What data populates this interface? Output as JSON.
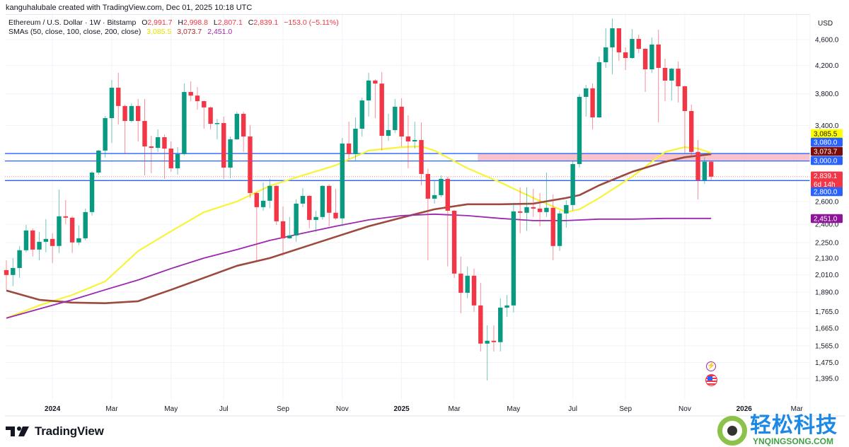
{
  "header": {
    "credit": "kanguhalubale created with TradingView.com, Dec 01, 2025 10:18 UTC",
    "symbol": "Ethereum / U.S. Dollar · 1W · Bitstamp",
    "o_label": "O",
    "o": "2,991.7",
    "h_label": "H",
    "h": "2,998.8",
    "l_label": "L",
    "l": "2,807.1",
    "c_label": "C",
    "c": "2,839.1",
    "change": "−153.0 (−5.11%)",
    "sma_label": "SMAs (50, close, 100, close, 200, close)",
    "sma_values": [
      "3,085.5",
      "3,073.7",
      "2,451.0"
    ]
  },
  "colors": {
    "up": "#089981",
    "down": "#f23645",
    "sma50": "#f7f43a",
    "sma100": "#9c4a3e",
    "sma200": "#9c27b0",
    "level_line": "#2962ff",
    "zone": "#f8b8c0",
    "grid": "#f0f3fa"
  },
  "chart_data": {
    "type": "candlestick",
    "interval": "1W",
    "price_scale": "log",
    "grid": true,
    "columns": [
      "date",
      "open",
      "high",
      "low",
      "close"
    ],
    "candles": [
      [
        "2023-11-13",
        2043,
        2115,
        1906,
        2008
      ],
      [
        "2023-11-20",
        2008,
        2131,
        1930,
        2058
      ],
      [
        "2023-11-27",
        2058,
        2224,
        1988,
        2191
      ],
      [
        "2023-12-04",
        2191,
        2396,
        2175,
        2349
      ],
      [
        "2023-12-11",
        2349,
        2367,
        2142,
        2196
      ],
      [
        "2023-12-18",
        2196,
        2337,
        2115,
        2257
      ],
      [
        "2023-12-25",
        2257,
        2445,
        2175,
        2280
      ],
      [
        "2024-01-01",
        2280,
        2326,
        2095,
        2224
      ],
      [
        "2024-01-08",
        2224,
        2714,
        2170,
        2469
      ],
      [
        "2024-01-15",
        2469,
        2614,
        2402,
        2457
      ],
      [
        "2024-01-22",
        2457,
        2470,
        2170,
        2252
      ],
      [
        "2024-01-29",
        2252,
        2390,
        2230,
        2285
      ],
      [
        "2024-02-05",
        2285,
        2537,
        2268,
        2506
      ],
      [
        "2024-02-12",
        2506,
        2895,
        2475,
        2880
      ],
      [
        "2024-02-19",
        2880,
        3120,
        2859,
        3112
      ],
      [
        "2024-02-26",
        3112,
        3515,
        3036,
        3489
      ],
      [
        "2024-03-04",
        3489,
        3990,
        3197,
        3883
      ],
      [
        "2024-03-11",
        3883,
        4093,
        3412,
        3641
      ],
      [
        "2024-03-18",
        3641,
        3659,
        3074,
        3454
      ],
      [
        "2024-03-25",
        3454,
        3677,
        3437,
        3641
      ],
      [
        "2024-04-01",
        3641,
        3732,
        3214,
        3454
      ],
      [
        "2024-04-08",
        3454,
        3732,
        2852,
        3158
      ],
      [
        "2024-04-15",
        3158,
        3278,
        2873,
        3142
      ],
      [
        "2024-04-22",
        3142,
        3353,
        3097,
        3262
      ],
      [
        "2024-04-29",
        3262,
        3295,
        2817,
        3134
      ],
      [
        "2024-05-06",
        3134,
        3214,
        2888,
        2924
      ],
      [
        "2024-05-13",
        2924,
        3150,
        2859,
        3074
      ],
      [
        "2024-05-20",
        3074,
        3943,
        3058,
        3825
      ],
      [
        "2024-05-27",
        3825,
        3972,
        3704,
        3777
      ],
      [
        "2024-06-03",
        3777,
        3893,
        3595,
        3704
      ],
      [
        "2024-06-10",
        3704,
        3712,
        3361,
        3623
      ],
      [
        "2024-06-17",
        3623,
        3632,
        3353,
        3420
      ],
      [
        "2024-06-24",
        3420,
        3481,
        3238,
        3429
      ],
      [
        "2024-07-01",
        3429,
        3507,
        2817,
        2931
      ],
      [
        "2024-07-08",
        2931,
        3270,
        2824,
        3238
      ],
      [
        "2024-07-15",
        3238,
        3568,
        3230,
        3542
      ],
      [
        "2024-07-22",
        3542,
        3568,
        3097,
        3270
      ],
      [
        "2024-07-29",
        3270,
        3404,
        2634,
        2680
      ],
      [
        "2024-08-05",
        2680,
        2690,
        2115,
        2550
      ],
      [
        "2024-08-12",
        2550,
        2782,
        2518,
        2608
      ],
      [
        "2024-08-19",
        2608,
        2817,
        2540,
        2748
      ],
      [
        "2024-08-26",
        2748,
        2755,
        2396,
        2426
      ],
      [
        "2024-09-02",
        2426,
        2556,
        2148,
        2285
      ],
      [
        "2024-09-09",
        2285,
        2463,
        2280,
        2308
      ],
      [
        "2024-09-16",
        2308,
        2621,
        2257,
        2582
      ],
      [
        "2024-09-23",
        2582,
        2727,
        2550,
        2653
      ],
      [
        "2024-09-30",
        2653,
        2660,
        2367,
        2438
      ],
      [
        "2024-10-07",
        2438,
        2518,
        2337,
        2463
      ],
      [
        "2024-10-14",
        2463,
        2755,
        2440,
        2748
      ],
      [
        "2024-10-21",
        2748,
        2762,
        2384,
        2500
      ],
      [
        "2024-10-28",
        2500,
        2720,
        2440,
        2451
      ],
      [
        "2024-11-04",
        2451,
        3254,
        2384,
        3190
      ],
      [
        "2024-11-11",
        3190,
        3446,
        3020,
        3074
      ],
      [
        "2024-11-18",
        3074,
        3498,
        3005,
        3361
      ],
      [
        "2024-11-25",
        3361,
        3750,
        3270,
        3713
      ],
      [
        "2024-12-02",
        3713,
        4093,
        3507,
        3983
      ],
      [
        "2024-12-09",
        3983,
        4000,
        3489,
        3940
      ],
      [
        "2024-12-16",
        3940,
        4104,
        3112,
        3278
      ],
      [
        "2024-12-23",
        3278,
        3542,
        3222,
        3345
      ],
      [
        "2024-12-30",
        3345,
        3732,
        3310,
        3632
      ],
      [
        "2025-01-06",
        3632,
        3741,
        3158,
        3270
      ],
      [
        "2025-01-13",
        3270,
        3524,
        2924,
        3214
      ],
      [
        "2025-01-20",
        3214,
        3446,
        3134,
        3230
      ],
      [
        "2025-01-27",
        3230,
        3437,
        2754,
        2866
      ],
      [
        "2025-02-03",
        2866,
        2920,
        2115,
        2627
      ],
      [
        "2025-02-10",
        2627,
        2796,
        2582,
        2660
      ],
      [
        "2025-02-17",
        2660,
        2852,
        2640,
        2817
      ],
      [
        "2025-02-24",
        2817,
        2838,
        2069,
        2518
      ],
      [
        "2025-03-03",
        2518,
        2525,
        1988,
        2018
      ],
      [
        "2025-03-10",
        2018,
        2142,
        1755,
        1886
      ],
      [
        "2025-03-17",
        1886,
        2069,
        1850,
        2003
      ],
      [
        "2025-03-24",
        2003,
        2054,
        1764,
        1804
      ],
      [
        "2025-03-31",
        1804,
        1954,
        1534,
        1577
      ],
      [
        "2025-04-07",
        1577,
        1682,
        1385,
        1593
      ],
      [
        "2025-04-14",
        1593,
        1682,
        1534,
        1585
      ],
      [
        "2025-04-21",
        1585,
        1850,
        1534,
        1790
      ],
      [
        "2025-04-28",
        1790,
        1872,
        1733,
        1804
      ],
      [
        "2025-05-05",
        1804,
        2589,
        1760,
        2512
      ],
      [
        "2025-05-12",
        2512,
        2734,
        2326,
        2500
      ],
      [
        "2025-05-19",
        2500,
        2734,
        2345,
        2550
      ],
      [
        "2025-05-26",
        2550,
        2720,
        2463,
        2537
      ],
      [
        "2025-06-02",
        2537,
        2680,
        2384,
        2506
      ],
      [
        "2025-06-09",
        2506,
        2880,
        2463,
        2544
      ],
      [
        "2025-06-16",
        2544,
        2667,
        2115,
        2224
      ],
      [
        "2025-06-23",
        2224,
        2519,
        2185,
        2494
      ],
      [
        "2025-06-30",
        2494,
        2614,
        2372,
        2569
      ],
      [
        "2025-07-07",
        2569,
        3005,
        2519,
        2968
      ],
      [
        "2025-07-14",
        2968,
        3797,
        2930,
        3760
      ],
      [
        "2025-07-21",
        3760,
        3923,
        3507,
        3874
      ],
      [
        "2025-07-28",
        3874,
        3943,
        3353,
        3498
      ],
      [
        "2025-08-04",
        3498,
        4334,
        3490,
        4248
      ],
      [
        "2025-08-11",
        4248,
        4790,
        4164,
        4476
      ],
      [
        "2025-08-18",
        4476,
        4955,
        4072,
        4787
      ],
      [
        "2025-08-25",
        4787,
        4790,
        4269,
        4398
      ],
      [
        "2025-09-01",
        4398,
        4476,
        4133,
        4311
      ],
      [
        "2025-09-08",
        4311,
        4775,
        4300,
        4611
      ],
      [
        "2025-09-15",
        4611,
        4680,
        4387,
        4453
      ],
      [
        "2025-09-22",
        4453,
        4465,
        3825,
        4143
      ],
      [
        "2025-09-29",
        4143,
        4634,
        4093,
        4521
      ],
      [
        "2025-10-06",
        4521,
        4762,
        3437,
        4164
      ],
      [
        "2025-10-13",
        4164,
        4301,
        3704,
        3981
      ],
      [
        "2025-10-20",
        3981,
        4164,
        3712,
        4152
      ],
      [
        "2025-10-27",
        4152,
        4258,
        3686,
        3903
      ],
      [
        "2025-11-03",
        3903,
        3910,
        3081,
        3577
      ],
      [
        "2025-11-10",
        3577,
        3659,
        3058,
        3097
      ],
      [
        "2025-11-17",
        3097,
        3230,
        2621,
        2803
      ],
      [
        "2025-11-24",
        2803,
        3040,
        2768,
        2992
      ],
      [
        "2025-12-01",
        2991.7,
        2998.8,
        2807.1,
        2839.1
      ]
    ],
    "sma": [
      {
        "name": "SMA 50",
        "color_key": "sma50",
        "points": [
          [
            "2023-11-13",
            1725
          ],
          [
            "2023-12-18",
            1804
          ],
          [
            "2024-01-22",
            1872
          ],
          [
            "2024-02-26",
            1963
          ],
          [
            "2024-04-01",
            2185
          ],
          [
            "2024-05-06",
            2343
          ],
          [
            "2024-06-10",
            2506
          ],
          [
            "2024-07-15",
            2601
          ],
          [
            "2024-08-19",
            2748
          ],
          [
            "2024-09-23",
            2852
          ],
          [
            "2024-10-28",
            2954
          ],
          [
            "2024-12-02",
            3112
          ],
          [
            "2025-01-06",
            3150
          ],
          [
            "2025-01-27",
            3158
          ],
          [
            "2025-02-10",
            3112
          ],
          [
            "2025-03-17",
            2924
          ],
          [
            "2025-04-21",
            2782
          ],
          [
            "2025-05-26",
            2634
          ],
          [
            "2025-06-30",
            2506
          ],
          [
            "2025-07-14",
            2531
          ],
          [
            "2025-08-04",
            2634
          ],
          [
            "2025-09-08",
            2838
          ],
          [
            "2025-10-13",
            3097
          ],
          [
            "2025-11-03",
            3150
          ],
          [
            "2025-11-17",
            3134
          ],
          [
            "2025-12-01",
            3085.5
          ]
        ]
      },
      {
        "name": "SMA 100",
        "color_key": "sma100",
        "points": [
          [
            "2023-11-13",
            1901
          ],
          [
            "2023-12-18",
            1840
          ],
          [
            "2024-01-22",
            1822
          ],
          [
            "2024-02-26",
            1818
          ],
          [
            "2024-04-01",
            1831
          ],
          [
            "2024-05-06",
            1906
          ],
          [
            "2024-06-10",
            1988
          ],
          [
            "2024-07-15",
            2074
          ],
          [
            "2024-08-19",
            2131
          ],
          [
            "2024-09-23",
            2213
          ],
          [
            "2024-10-28",
            2297
          ],
          [
            "2024-12-02",
            2384
          ],
          [
            "2025-01-06",
            2457
          ],
          [
            "2025-02-10",
            2531
          ],
          [
            "2025-03-17",
            2576
          ],
          [
            "2025-04-21",
            2576
          ],
          [
            "2025-05-26",
            2582
          ],
          [
            "2025-06-30",
            2634
          ],
          [
            "2025-07-14",
            2660
          ],
          [
            "2025-08-04",
            2754
          ],
          [
            "2025-09-08",
            2888
          ],
          [
            "2025-10-13",
            2991
          ],
          [
            "2025-11-03",
            3040
          ],
          [
            "2025-12-01",
            3073.7
          ]
        ]
      },
      {
        "name": "SMA 200",
        "color_key": "sma200",
        "points": [
          [
            "2023-11-13",
            1725
          ],
          [
            "2023-12-18",
            1782
          ],
          [
            "2024-01-22",
            1840
          ],
          [
            "2024-02-26",
            1906
          ],
          [
            "2024-04-01",
            1973
          ],
          [
            "2024-05-06",
            2054
          ],
          [
            "2024-06-10",
            2131
          ],
          [
            "2024-07-15",
            2196
          ],
          [
            "2024-08-19",
            2268
          ],
          [
            "2024-09-23",
            2326
          ],
          [
            "2024-10-28",
            2384
          ],
          [
            "2024-12-02",
            2438
          ],
          [
            "2025-01-06",
            2475
          ],
          [
            "2025-02-10",
            2488
          ],
          [
            "2025-03-17",
            2475
          ],
          [
            "2025-04-21",
            2451
          ],
          [
            "2025-05-26",
            2432
          ],
          [
            "2025-06-30",
            2432
          ],
          [
            "2025-08-04",
            2445
          ],
          [
            "2025-09-08",
            2445
          ],
          [
            "2025-10-13",
            2451
          ],
          [
            "2025-12-01",
            2451.0
          ]
        ]
      }
    ],
    "horizontal_lines": [
      3080.0,
      3000.0,
      2800.0
    ],
    "zone": {
      "from_date": "2025-03-31",
      "low": 3000.0,
      "high": 3080.0
    },
    "current_price": 2839.1
  },
  "price_axis": {
    "currency": "USD",
    "ticks": [
      {
        "value": 4600,
        "label": "4,600.0"
      },
      {
        "value": 4200,
        "label": "4,200.0"
      },
      {
        "value": 3800,
        "label": "3,800.0"
      },
      {
        "value": 3400,
        "label": "3,400.0"
      },
      {
        "value": 2600,
        "label": "2,600.0"
      },
      {
        "value": 2400,
        "label": "2,400.0"
      },
      {
        "value": 2250,
        "label": "2,250.0"
      },
      {
        "value": 2130,
        "label": "2,130.0"
      },
      {
        "value": 2010,
        "label": "2,010.0"
      },
      {
        "value": 1890,
        "label": "1,890.0"
      },
      {
        "value": 1765,
        "label": "1,765.0"
      },
      {
        "value": 1665,
        "label": "1,665.0"
      },
      {
        "value": 1565,
        "label": "1,565.0"
      },
      {
        "value": 1475,
        "label": "1,475.0"
      },
      {
        "value": 1395,
        "label": "1,395.0"
      }
    ],
    "labels": [
      {
        "text": "3,085.5",
        "bg": "#ffff00",
        "fg": "#131722"
      },
      {
        "text": "3,080.0",
        "bg": "#2962ff",
        "fg": "#ffffff"
      },
      {
        "text": "3,073.7",
        "bg": "#7a0c0c",
        "fg": "#ffffff"
      },
      {
        "text": "3,000.0",
        "bg": "#2962ff",
        "fg": "#ffffff"
      },
      {
        "text": "2,839.1",
        "sub": "6d 14h",
        "bg": "#f23645",
        "fg": "#ffffff"
      },
      {
        "text": "2,800.0",
        "bg": "#2962ff",
        "fg": "#ffffff"
      },
      {
        "text": "2,451.0",
        "bg": "#8e1599",
        "fg": "#ffffff"
      }
    ]
  },
  "time_axis": {
    "ticks": [
      {
        "date": "2024-01-01",
        "label": "2024",
        "bold": true
      },
      {
        "date": "2024-03-04",
        "label": "Mar"
      },
      {
        "date": "2024-05-06",
        "label": "May"
      },
      {
        "date": "2024-07-01",
        "label": "Jul"
      },
      {
        "date": "2024-09-02",
        "label": "Sep"
      },
      {
        "date": "2024-11-04",
        "label": "Nov"
      },
      {
        "date": "2025-01-06",
        "label": "2025",
        "bold": true
      },
      {
        "date": "2025-03-03",
        "label": "Mar"
      },
      {
        "date": "2025-05-05",
        "label": "May"
      },
      {
        "date": "2025-07-07",
        "label": "Jul"
      },
      {
        "date": "2025-09-01",
        "label": "Sep"
      },
      {
        "date": "2025-11-03",
        "label": "Nov"
      },
      {
        "date": "2026-01-05",
        "label": "2026",
        "bold": true
      },
      {
        "date": "2026-03-02",
        "label": "Mar"
      }
    ]
  },
  "events": [
    {
      "icon": "lightning-event-icon"
    },
    {
      "icon": "us-flag-economic-event-icon"
    }
  ],
  "branding": {
    "logo_text": "TradingView"
  },
  "watermark": {
    "cn": "轻松科技",
    "en": "YNQINGSONG.COM"
  }
}
